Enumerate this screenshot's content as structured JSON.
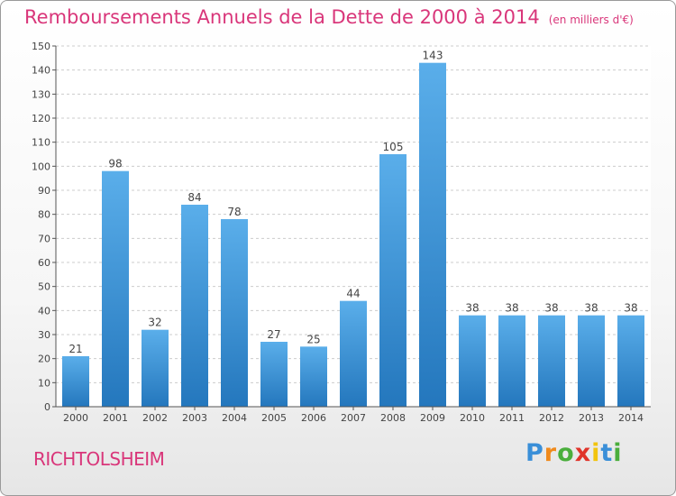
{
  "title": "Remboursements Annuels de la Dette de 2000 à 2014",
  "unit": "(en milliers d'€)",
  "commune": "RICHTOLSHEIM",
  "logo": {
    "letters": [
      "P",
      "r",
      "o",
      "x",
      "i",
      "t",
      "i"
    ],
    "colors": [
      "#3a8fd8",
      "#f08a1c",
      "#4aae3c",
      "#e0342a",
      "#f2c40c",
      "#3a8fd8",
      "#4aae3c"
    ]
  },
  "chart_data": {
    "type": "bar",
    "title": "Remboursements Annuels de la Dette de 2000 à 2014",
    "categories": [
      "2000",
      "2001",
      "2002",
      "2003",
      "2004",
      "2005",
      "2006",
      "2007",
      "2008",
      "2009",
      "2010",
      "2011",
      "2012",
      "2013",
      "2014"
    ],
    "values": [
      21,
      98,
      32,
      84,
      78,
      27,
      25,
      44,
      105,
      143,
      38,
      38,
      38,
      38,
      38
    ],
    "ylim": [
      0,
      150
    ],
    "yticks": [
      0,
      10,
      20,
      30,
      40,
      50,
      60,
      70,
      80,
      90,
      100,
      110,
      120,
      130,
      140,
      150
    ],
    "grid": true,
    "bar_color": "#3d95d9"
  }
}
